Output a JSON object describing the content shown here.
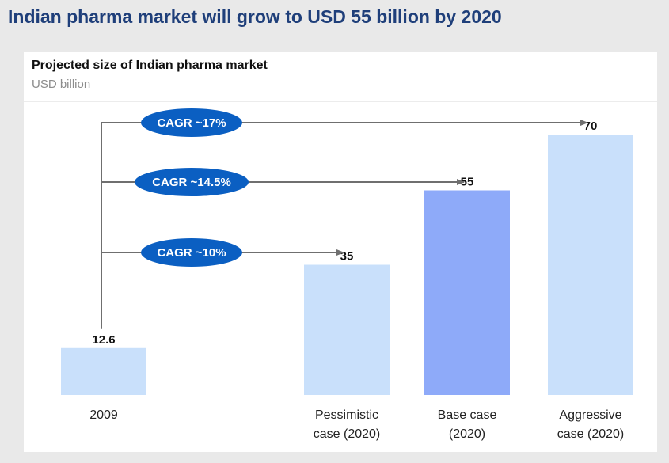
{
  "headline": "Indian pharma market will grow to USD 55 billion by 2020",
  "chart_data": {
    "type": "bar",
    "title": "Projected size of Indian pharma market",
    "subtitle": "USD billion",
    "categories": [
      [
        "2009"
      ],
      [
        "Pessimistic",
        "case (2020)"
      ],
      [
        "Base case",
        "(2020)"
      ],
      [
        "Aggressive",
        "case (2020)"
      ]
    ],
    "values": [
      12.6,
      35,
      55,
      70
    ],
    "value_labels": [
      "12.6",
      "35",
      "55",
      "70"
    ],
    "ylim": [
      0,
      70
    ],
    "grid": false,
    "annotations": [
      {
        "label": "CAGR ~17%",
        "from": 0,
        "to": 3
      },
      {
        "label": "CAGR ~14.5%",
        "from": 0,
        "to": 2
      },
      {
        "label": "CAGR ~10%",
        "from": 0,
        "to": 1
      }
    ]
  },
  "colors": {
    "headline": "#1f3f7a",
    "bar_light": "#c9e0fb",
    "bar_highlight": "#8eaaf9",
    "highlight_index": 2,
    "cagr_oval": "#0b5fc2",
    "arrow": "#6f6f6f"
  }
}
